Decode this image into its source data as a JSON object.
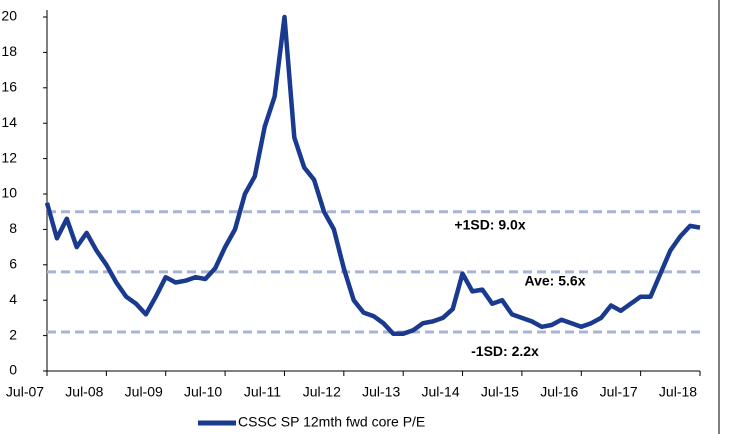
{
  "chart_data": {
    "type": "line",
    "categories": [
      "Jul-07",
      null,
      null,
      null,
      null,
      null,
      "Jul-08",
      null,
      null,
      null,
      null,
      null,
      "Jul-09",
      null,
      null,
      null,
      null,
      null,
      "Jul-10",
      null,
      null,
      null,
      null,
      null,
      "Jul-11",
      null,
      null,
      null,
      null,
      null,
      "Jul-12",
      null,
      null,
      null,
      null,
      null,
      "Jul-13",
      null,
      null,
      null,
      null,
      null,
      "Jul-14",
      null,
      null,
      null,
      null,
      null,
      "Jul-15",
      null,
      null,
      null,
      null,
      null,
      "Jul-16",
      null,
      null,
      null,
      null,
      null,
      "Jul-17",
      null,
      null,
      null,
      null,
      null,
      "Jul-18"
    ],
    "series": [
      {
        "name": "CSSC SP 12mth fwd core P/E",
        "color": "#1a3a8f",
        "values": [
          9.5,
          7.5,
          8.6,
          7.0,
          7.8,
          6.8,
          6.0,
          5.0,
          4.2,
          3.8,
          3.2,
          4.2,
          5.3,
          5.0,
          5.1,
          5.3,
          5.2,
          5.8,
          7.0,
          8.0,
          10.0,
          11.0,
          13.8,
          15.5,
          20.0,
          13.2,
          11.5,
          10.8,
          9.0,
          8.0,
          5.8,
          4.0,
          3.3,
          3.1,
          2.7,
          2.1,
          2.1,
          2.3,
          2.7,
          2.8,
          3.0,
          3.5,
          5.5,
          4.5,
          4.6,
          3.8,
          4.0,
          3.2,
          3.0,
          2.8,
          2.5,
          2.6,
          2.9,
          2.7,
          2.5,
          2.7,
          3.0,
          3.7,
          3.4,
          3.8,
          4.2,
          4.2,
          5.5,
          6.8,
          7.6,
          8.2,
          8.1
        ]
      }
    ],
    "reference_lines": [
      {
        "value": 9.0,
        "label": "+1SD: 9.0x"
      },
      {
        "value": 5.6,
        "label": "Ave: 5.6x"
      },
      {
        "value": 2.2,
        "label": "-1SD: 2.2x"
      }
    ],
    "reference_color": "#a8b4d4",
    "ylim": [
      0,
      20
    ],
    "yticks": [
      0,
      2,
      4,
      6,
      8,
      10,
      12,
      14,
      16,
      18,
      20
    ]
  }
}
